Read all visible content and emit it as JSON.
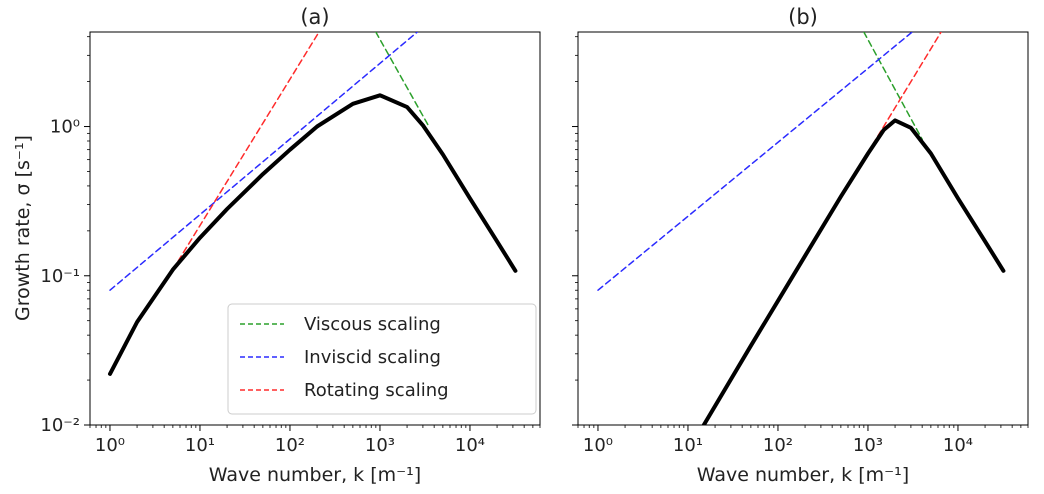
{
  "chart_data": [
    {
      "type": "line",
      "panel": "(a)",
      "title": "(a)",
      "xlabel": "Wave number, k [m⁻¹]",
      "ylabel": "Growth rate, σ [s⁻¹]",
      "xscale": "log",
      "yscale": "log",
      "xlim": [
        0.6,
        60000
      ],
      "ylim": [
        0.01,
        4.3
      ],
      "xticks": [
        "10⁰",
        "10¹",
        "10²",
        "10³",
        "10⁴"
      ],
      "yticks": [
        "10⁻²",
        "10⁻¹",
        "10⁰"
      ],
      "grid": false,
      "legend_position": "lower-right",
      "series": [
        {
          "kind": "solid",
          "color": "#000000",
          "x": [
            1,
            2,
            5,
            10,
            20,
            50,
            100,
            200,
            500,
            1000,
            2000,
            3000,
            5000,
            10000,
            20000,
            32000
          ],
          "y": [
            0.022,
            0.049,
            0.11,
            0.18,
            0.28,
            0.48,
            0.7,
            1.0,
            1.42,
            1.62,
            1.35,
            1.02,
            0.65,
            0.33,
            0.17,
            0.108
          ]
        },
        {
          "kind": "dashed",
          "name": "Viscous scaling",
          "color": "#2ca02c",
          "x": [
            900,
            3500
          ],
          "y": [
            4.3,
            1.0
          ]
        },
        {
          "kind": "dashed",
          "name": "Inviscid scaling",
          "color": "#2b2bff",
          "x": [
            1,
            2600
          ],
          "y": [
            0.08,
            4.3
          ]
        },
        {
          "kind": "dashed",
          "name": "Rotating scaling",
          "color": "#ff2b2b",
          "x": [
            5,
            210
          ],
          "y": [
            0.11,
            4.3
          ]
        }
      ]
    },
    {
      "type": "line",
      "panel": "(b)",
      "title": "(b)",
      "xlabel": "Wave number, k [m⁻¹]",
      "xscale": "log",
      "yscale": "log",
      "xlim": [
        0.6,
        60000
      ],
      "ylim": [
        0.01,
        4.3
      ],
      "xticks": [
        "10⁰",
        "10¹",
        "10²",
        "10³",
        "10⁴"
      ],
      "grid": false,
      "series": [
        {
          "kind": "solid",
          "color": "#000000",
          "x": [
            15,
            50,
            100,
            200,
            500,
            1000,
            1500,
            2000,
            3000,
            5000,
            10000,
            20000,
            32000
          ],
          "y": [
            0.01,
            0.034,
            0.068,
            0.136,
            0.34,
            0.66,
            0.95,
            1.1,
            0.98,
            0.66,
            0.33,
            0.17,
            0.108
          ]
        },
        {
          "kind": "dashed",
          "color": "#2ca02c",
          "x": [
            900,
            4000
          ],
          "y": [
            4.3,
            0.82
          ]
        },
        {
          "kind": "dashed",
          "color": "#2b2bff",
          "x": [
            1,
            3100
          ],
          "y": [
            0.08,
            4.3
          ]
        },
        {
          "kind": "dashed",
          "color": "#ff2b2b",
          "x": [
            200,
            6500
          ],
          "y": [
            0.136,
            4.3
          ]
        }
      ]
    }
  ]
}
